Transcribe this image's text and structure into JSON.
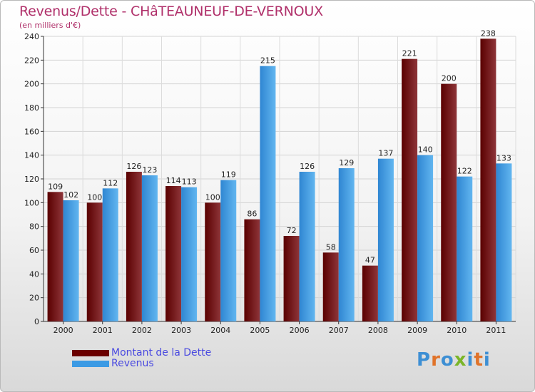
{
  "title": "Revenus/Dette - CHâTEAUNEUF-DE-VERNOUX",
  "subtitle": "(en milliers d'€)",
  "chart_data": {
    "type": "bar",
    "categories": [
      "2000",
      "2001",
      "2002",
      "2003",
      "2004",
      "2005",
      "2006",
      "2007",
      "2008",
      "2009",
      "2010",
      "2011"
    ],
    "series": [
      {
        "name": "Montant de la Dette",
        "values": [
          109,
          100,
          126,
          114,
          100,
          86,
          72,
          58,
          47,
          221,
          200,
          238
        ],
        "color": "#7a1e25"
      },
      {
        "name": "Revenus",
        "values": [
          102,
          112,
          123,
          113,
          119,
          215,
          126,
          129,
          137,
          140,
          122,
          133
        ],
        "color": "#4aa3e6"
      }
    ],
    "ylim": [
      0,
      240
    ],
    "yticks": [
      0,
      20,
      40,
      60,
      80,
      100,
      120,
      140,
      160,
      180,
      200,
      220,
      240
    ],
    "grid": true,
    "legend_position": "bottom-left"
  },
  "logo": {
    "text": "Proxiti",
    "letter_colors": [
      "#3d8fd4",
      "#e0732a",
      "#3d8fd4",
      "#7ab528",
      "#3d8fd4",
      "#e0732a",
      "#3d8fd4"
    ]
  }
}
